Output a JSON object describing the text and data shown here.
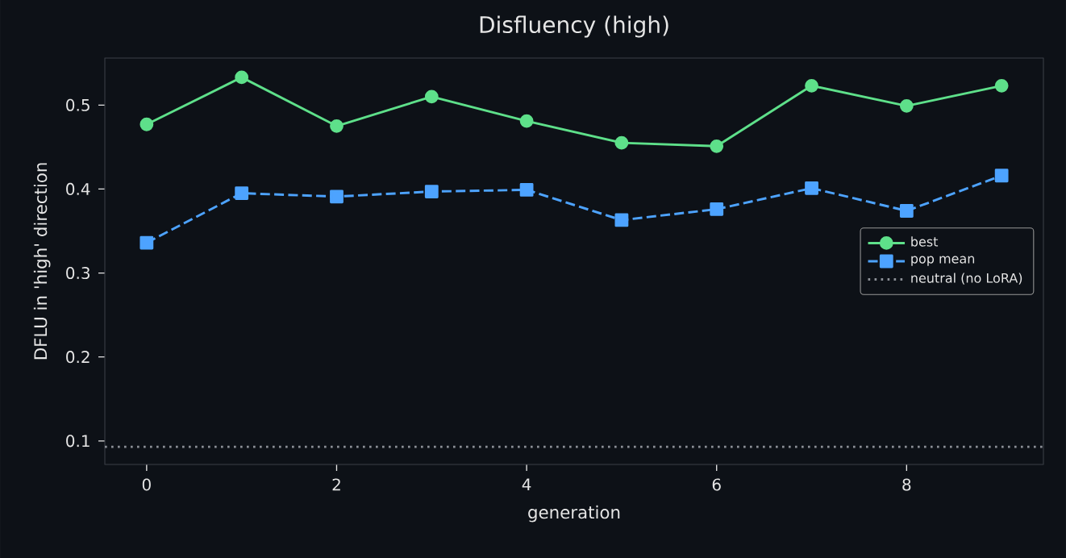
{
  "chart_data": {
    "type": "line",
    "title": "Disfluency (high)",
    "xlabel": "generation",
    "ylabel": "DFLU in 'high' direction",
    "x": [
      0,
      1,
      2,
      3,
      4,
      5,
      6,
      7,
      8,
      9
    ],
    "series": [
      {
        "name": "best",
        "color": "#5ee08a",
        "marker": "circle",
        "line_style": "solid",
        "values": [
          0.477,
          0.533,
          0.475,
          0.51,
          0.481,
          0.455,
          0.451,
          0.523,
          0.499,
          0.523
        ]
      },
      {
        "name": "pop mean",
        "color": "#4da3ff",
        "marker": "square",
        "line_style": "dashed",
        "values": [
          0.336,
          0.395,
          0.391,
          0.397,
          0.399,
          0.363,
          0.376,
          0.401,
          0.374,
          0.416
        ]
      }
    ],
    "ref_lines": [
      {
        "axis": "y",
        "value": 0.093,
        "label": "neutral (no LoRA)",
        "color": "#8b8f96",
        "line_style": "dotted"
      }
    ],
    "xlim": [
      -0.44,
      9.44
    ],
    "ylim": [
      0.072,
      0.556
    ],
    "xticks": [
      0,
      2,
      4,
      6,
      8
    ],
    "yticks": [
      0.1,
      0.2,
      0.3,
      0.4,
      0.5
    ],
    "legend": "right"
  }
}
